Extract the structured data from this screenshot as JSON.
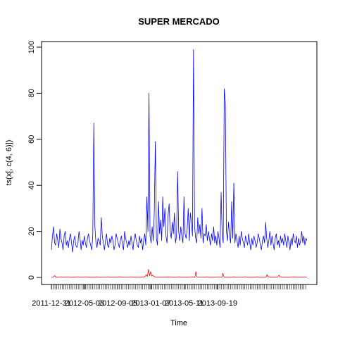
{
  "chart_data": {
    "type": "line",
    "title": "SUPER MERCADO",
    "xlabel": "Time",
    "ylabel": "ts(x[, c(4, 6)])",
    "ylim": [
      0,
      100
    ],
    "yticks": [
      0,
      20,
      40,
      60,
      80,
      100
    ],
    "xlim": [
      1,
      1000
    ],
    "xticks": [
      {
        "x": 1,
        "label": "2011-12-31"
      },
      {
        "x": 130,
        "label": "2012-05-03"
      },
      {
        "x": 260,
        "label": "2012-09-05"
      },
      {
        "x": 390,
        "label": "2013-01-07"
      },
      {
        "x": 520,
        "label": "2013-05-11"
      },
      {
        "x": 650,
        "label": "2013-09-19"
      }
    ],
    "series": [
      {
        "color": "#0000ff",
        "values": [
          12,
          18,
          22,
          15,
          14,
          19,
          16,
          13,
          21,
          17,
          15,
          12,
          18,
          20,
          14,
          16,
          13,
          17,
          19,
          15,
          11,
          16,
          18,
          14,
          13,
          15,
          20,
          17,
          12,
          16,
          14,
          18,
          15,
          13,
          17,
          19,
          16,
          14,
          12,
          18,
          67,
          22,
          15,
          13,
          17,
          16,
          14,
          26,
          18,
          15,
          12,
          16,
          19,
          14,
          13,
          17,
          15,
          18,
          16,
          12,
          14,
          19,
          17,
          15,
          13,
          16,
          18,
          14,
          12,
          20,
          17,
          15,
          13,
          16,
          14,
          18,
          15,
          12,
          17,
          19,
          16,
          14,
          13,
          18,
          15,
          17,
          12,
          16,
          19,
          14,
          35,
          20,
          80,
          18,
          15,
          22,
          16,
          28,
          59,
          17,
          14,
          33,
          19,
          25,
          16,
          35,
          22,
          30,
          18,
          15,
          27,
          32,
          20,
          17,
          24,
          19,
          28,
          15,
          18,
          46,
          20,
          16,
          22,
          18,
          15,
          35,
          19,
          17,
          21,
          30,
          16,
          28,
          24,
          18,
          99,
          22,
          17,
          15,
          26,
          19,
          23,
          17,
          30,
          15,
          19,
          18,
          23,
          16,
          20,
          17,
          14,
          19,
          16,
          22,
          15,
          18,
          14,
          20,
          17,
          13,
          37,
          19,
          15,
          82,
          76,
          20,
          16,
          24,
          18,
          15,
          33,
          17,
          41,
          15,
          19,
          16,
          13,
          18,
          14,
          20,
          17,
          15,
          13,
          18,
          16,
          14,
          19,
          15,
          12,
          17,
          14,
          18,
          16,
          13,
          15,
          19,
          17,
          14,
          12,
          16,
          18,
          15,
          24,
          17,
          13,
          16,
          20,
          14,
          18,
          15,
          12,
          17,
          19,
          14,
          16,
          13,
          18,
          15,
          17,
          14,
          19,
          16,
          13,
          18,
          15,
          12,
          17,
          14,
          19,
          16,
          15,
          18,
          13,
          17,
          14,
          16,
          20,
          15,
          18,
          14,
          17,
          16
        ]
      },
      {
        "color": "#ff0000",
        "values": [
          0.2,
          0.1,
          0.3,
          0.8,
          0.2,
          0.1,
          0.2,
          0.1,
          0.2,
          0.3,
          0.1,
          0.2,
          0.1,
          0.2,
          0.1,
          0.3,
          0.2,
          0.1,
          0.2,
          0.1,
          0.2,
          0.1,
          0.2,
          0.1,
          0.3,
          0.2,
          0.1,
          0.2,
          0.1,
          0.2,
          0.1,
          0.2,
          0.3,
          0.1,
          0.2,
          0.1,
          0.2,
          0.1,
          0.2,
          0.1,
          0.2,
          0.1,
          0.3,
          0.2,
          0.1,
          0.2,
          0.1,
          0.2,
          0.1,
          0.2,
          0.1,
          0.2,
          0.3,
          0.1,
          0.2,
          0.1,
          0.2,
          0.1,
          0.2,
          0.1,
          0.2,
          0.1,
          0.2,
          0.3,
          0.1,
          0.2,
          0.1,
          0.2,
          0.1,
          0.2,
          0.1,
          0.2,
          0.1,
          0.2,
          0.3,
          0.1,
          0.2,
          0.1,
          0.2,
          0.1,
          0.2,
          0.1,
          0.2,
          0.1,
          0.2,
          0.3,
          0.1,
          0.5,
          1.2,
          0.4,
          3.5,
          0.8,
          2.5,
          0.6,
          1.0,
          0.4,
          0.3,
          0.2,
          0.1,
          0.2,
          0.1,
          0.2,
          0.1,
          0.2,
          0.1,
          0.2,
          0.1,
          0.2,
          0.1,
          0.3,
          0.2,
          0.1,
          0.2,
          0.1,
          0.2,
          0.1,
          0.2,
          0.1,
          0.2,
          0.3,
          0.1,
          0.2,
          0.1,
          0.2,
          0.1,
          0.2,
          0.1,
          0.2,
          0.1,
          0.2,
          0.3,
          0.1,
          0.2,
          0.1,
          2.5,
          0.2,
          0.1,
          0.2,
          0.1,
          0.2,
          0.1,
          0.2,
          0.1,
          0.2,
          0.3,
          0.1,
          0.2,
          0.1,
          0.2,
          0.1,
          0.2,
          0.1,
          0.2,
          0.1,
          0.2,
          0.3,
          0.1,
          0.2,
          0.1,
          1.8,
          0.2,
          0.1,
          0.2,
          0.1,
          0.2,
          0.1,
          0.2,
          0.1,
          0.2,
          0.3,
          0.1,
          0.2,
          0.1,
          0.2,
          0.1,
          0.2,
          0.1,
          0.2,
          0.1,
          0.2,
          0.3,
          0.1,
          0.2,
          0.1,
          0.2,
          0.1,
          0.2,
          0.1,
          0.2,
          0.1,
          0.2,
          0.3,
          0.1,
          0.2,
          0.1,
          0.2,
          0.1,
          0.2,
          0.1,
          0.2,
          1.2,
          0.2,
          0.3,
          0.1,
          0.2,
          0.1,
          0.2,
          0.1,
          0.2,
          0.1,
          0.2,
          1.0,
          0.2,
          0.3,
          0.1,
          0.2,
          0.1,
          0.2,
          0.1,
          0.2,
          0.1,
          0.2,
          0.1,
          0.2,
          0.3,
          0.1,
          0.2,
          0.1,
          0.2,
          0.1,
          0.2,
          0.1,
          0.2,
          0.1,
          0.2,
          0.3,
          0.1,
          0.2
        ]
      }
    ]
  }
}
